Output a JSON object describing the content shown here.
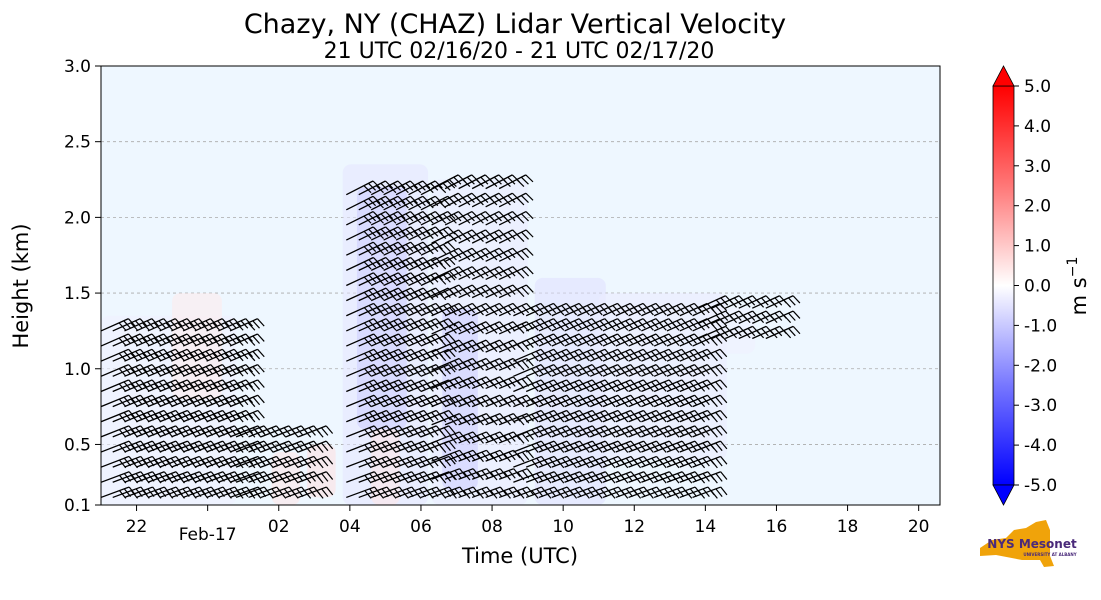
{
  "chart_data": {
    "type": "heatmap",
    "title": "Chazy, NY (CHAZ) Lidar Vertical Velocity",
    "subtitle": "21 UTC 02/16/20 - 21 UTC 02/17/20",
    "xlabel": "Time (UTC)",
    "ylabel": "Height (km)",
    "xlim_hours": [
      21.0,
      44.6
    ],
    "ylim": [
      0.1,
      3.0
    ],
    "x_ticks": [
      {
        "hour": 22,
        "label": "22"
      },
      {
        "hour": 24,
        "label": "Feb-17"
      },
      {
        "hour": 26,
        "label": "02"
      },
      {
        "hour": 28,
        "label": "04"
      },
      {
        "hour": 30,
        "label": "06"
      },
      {
        "hour": 32,
        "label": "08"
      },
      {
        "hour": 34,
        "label": "10"
      },
      {
        "hour": 36,
        "label": "12"
      },
      {
        "hour": 38,
        "label": "14"
      },
      {
        "hour": 40,
        "label": "16"
      },
      {
        "hour": 42,
        "label": "18"
      },
      {
        "hour": 44,
        "label": "20"
      }
    ],
    "y_ticks": [
      {
        "value": 0.1,
        "label": "0.1"
      },
      {
        "value": 0.5,
        "label": "0.5"
      },
      {
        "value": 1.0,
        "label": "1.0"
      },
      {
        "value": 1.5,
        "label": "1.5"
      },
      {
        "value": 2.0,
        "label": "2.0"
      },
      {
        "value": 2.5,
        "label": "2.5"
      },
      {
        "value": 3.0,
        "label": "3.0"
      }
    ],
    "grid": "horizontal dashed",
    "background_color": "#eef7ff",
    "colorbar": {
      "label": "m s",
      "label_superscript": "−1",
      "range": [
        -5.0,
        5.0
      ],
      "ticks": [
        "5.0",
        "4.0",
        "3.0",
        "2.0",
        "1.0",
        "0.0",
        "-1.0",
        "-2.0",
        "-3.0",
        "-4.0",
        "-5.0"
      ],
      "colors": [
        "#0000ff",
        "#ffffff",
        "#ff0000"
      ]
    },
    "velocity_regions": [
      {
        "t0": 21.0,
        "t1": 24.8,
        "h0": 0.1,
        "h1": 1.35,
        "w": -0.3
      },
      {
        "t0": 23.0,
        "t1": 24.4,
        "h0": 0.8,
        "h1": 1.5,
        "w": 0.4
      },
      {
        "t0": 25.8,
        "t1": 26.6,
        "h0": 0.1,
        "h1": 0.45,
        "w": 0.5
      },
      {
        "t0": 26.8,
        "t1": 27.6,
        "h0": 0.15,
        "h1": 0.5,
        "w": 0.6
      },
      {
        "t0": 27.8,
        "t1": 30.2,
        "h0": 0.1,
        "h1": 2.35,
        "w": -0.5
      },
      {
        "t0": 28.2,
        "t1": 29.6,
        "h0": 0.6,
        "h1": 2.2,
        "w": -1.0
      },
      {
        "t0": 28.6,
        "t1": 29.4,
        "h0": 0.1,
        "h1": 0.6,
        "w": 0.5
      },
      {
        "t0": 30.3,
        "t1": 33.0,
        "h0": 0.1,
        "h1": 2.25,
        "w": -0.4
      },
      {
        "t0": 30.6,
        "t1": 31.6,
        "h0": 0.2,
        "h1": 1.4,
        "w": -1.0
      },
      {
        "t0": 33.2,
        "t1": 35.2,
        "h0": 0.1,
        "h1": 1.6,
        "w": -0.6
      },
      {
        "t0": 35.0,
        "t1": 38.6,
        "h0": 0.4,
        "h1": 1.5,
        "w": -0.4
      },
      {
        "t0": 38.0,
        "t1": 39.4,
        "h0": 1.1,
        "h1": 1.4,
        "w": -0.3
      }
    ],
    "wind_barbs": [
      {
        "t0": 21.0,
        "t1": 24.7,
        "dt": 0.33,
        "h0": 0.15,
        "h1": 1.25,
        "dh": 0.1
      },
      {
        "t0": 24.8,
        "t1": 26.6,
        "dt": 0.35,
        "h0": 0.15,
        "h1": 0.55,
        "dh": 0.1
      },
      {
        "t0": 27.9,
        "t1": 30.0,
        "dt": 0.35,
        "h0": 0.15,
        "h1": 2.2,
        "dh": 0.1
      },
      {
        "t0": 30.3,
        "t1": 32.2,
        "dt": 0.38,
        "h0": 0.15,
        "h1": 2.2,
        "dh": 0.12
      },
      {
        "t0": 32.6,
        "t1": 37.8,
        "dt": 0.36,
        "h0": 0.15,
        "h1": 1.4,
        "dh": 0.1
      },
      {
        "t0": 37.8,
        "t1": 40.0,
        "dt": 0.38,
        "h0": 1.2,
        "h1": 1.4,
        "dh": 0.1
      }
    ],
    "logo_text": "NYS Mesonet",
    "logo_subtext": "UNIVERSITY AT ALBANY"
  }
}
